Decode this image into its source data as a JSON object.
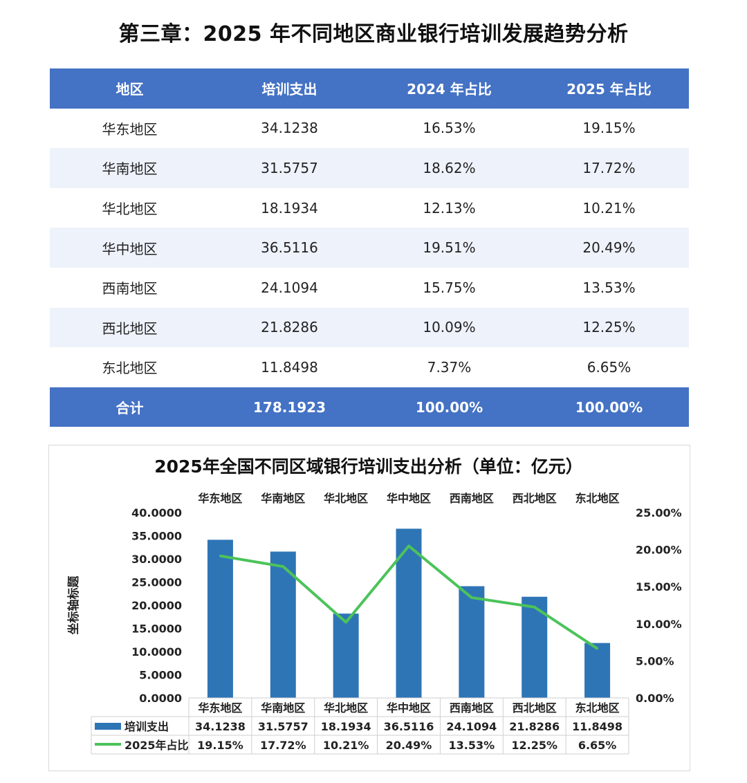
{
  "page_title": "第三章：2025 年不同地区商业银行培训发展趋势分析",
  "table": {
    "headers": [
      "地区",
      "培训支出",
      "2024 年占比",
      "2025 年占比"
    ],
    "rows": [
      [
        "华东地区",
        "34.1238",
        "16.53%",
        "19.15%"
      ],
      [
        "华南地区",
        "31.5757",
        "18.62%",
        "17.72%"
      ],
      [
        "华北地区",
        "18.1934",
        "12.13%",
        "10.21%"
      ],
      [
        "华中地区",
        "36.5116",
        "19.51%",
        "20.49%"
      ],
      [
        "西南地区",
        "24.1094",
        "15.75%",
        "13.53%"
      ],
      [
        "西北地区",
        "21.8286",
        "10.09%",
        "12.25%"
      ],
      [
        "东北地区",
        "11.8498",
        "7.37%",
        "6.65%"
      ]
    ],
    "total": [
      "合计",
      "178.1923",
      "100.00%",
      "100.00%"
    ]
  },
  "colors": {
    "header_bg": "#4472C4",
    "bar": "#2E75B6",
    "line": "#4CC35A",
    "stripe": "#EEF2FB"
  },
  "chart_data": {
    "type": "bar",
    "title": "2025年全国不同区域银行培训支出分析（单位：亿元）",
    "categories": [
      "华东地区",
      "华南地区",
      "华北地区",
      "华中地区",
      "西南地区",
      "西北地区",
      "东北地区"
    ],
    "series": [
      {
        "name": "培训支出",
        "type": "bar",
        "axis": "left",
        "values": [
          34.1238,
          31.5757,
          18.1934,
          36.5116,
          24.1094,
          21.8286,
          11.8498
        ],
        "labels": [
          "34.1238",
          "31.5757",
          "18.1934",
          "36.5116",
          "24.1094",
          "21.8286",
          "11.8498"
        ]
      },
      {
        "name": "2025年占比",
        "type": "line",
        "axis": "right",
        "values": [
          19.15,
          17.72,
          10.21,
          20.49,
          13.53,
          12.25,
          6.65
        ],
        "labels": [
          "19.15%",
          "17.72%",
          "10.21%",
          "20.49%",
          "13.53%",
          "12.25%",
          "6.65%"
        ]
      }
    ],
    "ylabel": "坐标轴标题",
    "ylim": [
      0,
      40
    ],
    "y_ticks": [
      "0.0000",
      "5.0000",
      "10.0000",
      "15.0000",
      "20.0000",
      "25.0000",
      "30.0000",
      "35.0000",
      "40.0000"
    ],
    "y2lim": [
      0,
      25
    ],
    "y2_ticks": [
      "0.00%",
      "5.00%",
      "10.00%",
      "15.00%",
      "20.00%",
      "25.00%"
    ],
    "legend": "data-table-bottom",
    "grid": false
  }
}
